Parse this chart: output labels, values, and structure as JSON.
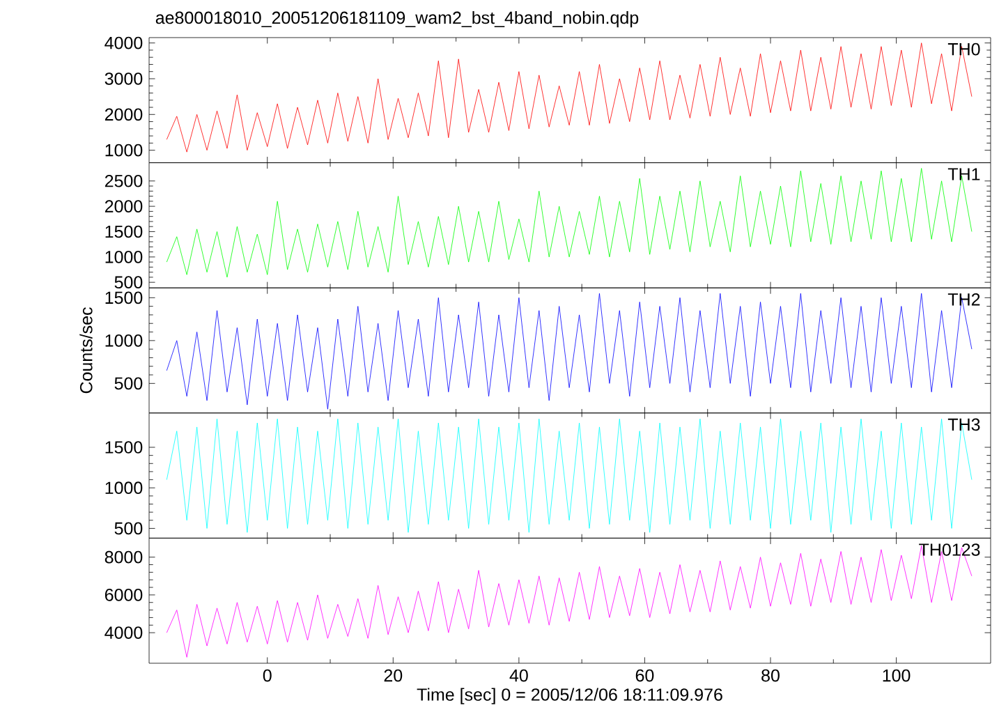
{
  "chart_data": [
    {
      "type": "line",
      "title": "ae800018010_20051206181109_wam2_bst_4band_nobin.qdp",
      "tick_labels": "y",
      "xlim": [
        -18.8,
        115
      ],
      "xticks": [
        0,
        20,
        40,
        60,
        80,
        100
      ],
      "ylim": [
        650,
        4150
      ],
      "yticks": [
        1000,
        2000,
        3000,
        4000
      ],
      "x": [
        -16,
        -14.4,
        -12.8,
        -11.2,
        -9.6,
        -8,
        -6.4,
        -4.8,
        -3.2,
        -1.6,
        0,
        1.6,
        3.2,
        4.8,
        6.4,
        8,
        9.6,
        11.2,
        12.8,
        14.4,
        16,
        17.6,
        19.2,
        20.8,
        22.4,
        24,
        25.6,
        27.2,
        28.8,
        30.4,
        32,
        33.6,
        35.2,
        36.8,
        38.4,
        40,
        41.6,
        43.2,
        44.8,
        46.4,
        48,
        49.6,
        51.2,
        52.8,
        54.4,
        56,
        57.6,
        59.2,
        60.8,
        62.4,
        64,
        65.6,
        67.2,
        68.8,
        70.4,
        72,
        73.6,
        75.2,
        76.8,
        78.4,
        80,
        81.6,
        83.2,
        84.8,
        86.4,
        88,
        89.6,
        91.2,
        92.8,
        94.4,
        96,
        97.6,
        99.2,
        100.8,
        102.4,
        104,
        105.6,
        107.2,
        108.8,
        110.4,
        112
      ],
      "series": [
        {
          "name": "TH0",
          "color": "#ff0000",
          "values": [
            1300,
            1950,
            950,
            2000,
            1000,
            2100,
            1050,
            2550,
            1000,
            2050,
            1100,
            2300,
            1050,
            2200,
            1150,
            2400,
            1200,
            2600,
            1250,
            2500,
            1200,
            3000,
            1300,
            2450,
            1350,
            2600,
            1400,
            3500,
            1350,
            3550,
            1500,
            2700,
            1500,
            2900,
            1550,
            3200,
            1600,
            3100,
            1650,
            2800,
            1700,
            3200,
            1700,
            3400,
            1750,
            3000,
            1800,
            3300,
            1850,
            3500,
            1850,
            3100,
            1900,
            3400,
            1950,
            3600,
            2000,
            3300,
            1950,
            3700,
            2050,
            3500,
            2100,
            3800,
            2100,
            3600,
            2150,
            3900,
            2200,
            3700,
            2150,
            3900,
            2250,
            3800,
            2200,
            4000,
            2300,
            3700,
            2100,
            3900,
            2500
          ]
        }
      ]
    },
    {
      "type": "line",
      "tick_labels": "y",
      "xlim": [
        -18.8,
        115
      ],
      "xticks": [
        0,
        20,
        40,
        60,
        80,
        100
      ],
      "ylim": [
        390,
        2860
      ],
      "yticks": [
        500,
        1000,
        1500,
        2000,
        2500
      ],
      "x": [
        -16,
        -14.4,
        -12.8,
        -11.2,
        -9.6,
        -8,
        -6.4,
        -4.8,
        -3.2,
        -1.6,
        0,
        1.6,
        3.2,
        4.8,
        6.4,
        8,
        9.6,
        11.2,
        12.8,
        14.4,
        16,
        17.6,
        19.2,
        20.8,
        22.4,
        24,
        25.6,
        27.2,
        28.8,
        30.4,
        32,
        33.6,
        35.2,
        36.8,
        38.4,
        40,
        41.6,
        43.2,
        44.8,
        46.4,
        48,
        49.6,
        51.2,
        52.8,
        54.4,
        56,
        57.6,
        59.2,
        60.8,
        62.4,
        64,
        65.6,
        67.2,
        68.8,
        70.4,
        72,
        73.6,
        75.2,
        76.8,
        78.4,
        80,
        81.6,
        83.2,
        84.8,
        86.4,
        88,
        89.6,
        91.2,
        92.8,
        94.4,
        96,
        97.6,
        99.2,
        100.8,
        102.4,
        104,
        105.6,
        107.2,
        108.8,
        110.4,
        112
      ],
      "series": [
        {
          "name": "TH1",
          "color": "#00ff00",
          "values": [
            900,
            1400,
            650,
            1550,
            700,
            1500,
            600,
            1600,
            700,
            1450,
            650,
            2100,
            750,
            1550,
            700,
            1650,
            800,
            1700,
            750,
            1900,
            800,
            1600,
            700,
            2200,
            850,
            1700,
            800,
            1800,
            850,
            2000,
            900,
            1900,
            900,
            2100,
            950,
            1750,
            900,
            2300,
            1000,
            2000,
            1000,
            1900,
            1050,
            2200,
            1000,
            2100,
            1100,
            2550,
            1050,
            2200,
            1150,
            2300,
            1100,
            2500,
            1200,
            2100,
            1100,
            2600,
            1200,
            2300,
            1250,
            2400,
            1200,
            2700,
            1300,
            2450,
            1250,
            2600,
            1300,
            2500,
            1350,
            2700,
            1300,
            2550,
            1300,
            2750,
            1350,
            2500,
            1300,
            2600,
            1500
          ]
        }
      ]
    },
    {
      "type": "line",
      "tick_labels": "y",
      "ylabel": "Counts/sec",
      "xlim": [
        -18.8,
        115
      ],
      "xticks": [
        0,
        20,
        40,
        60,
        80,
        100
      ],
      "ylim": [
        155,
        1615
      ],
      "yticks": [
        500,
        1000,
        1500
      ],
      "x": [
        -16,
        -14.4,
        -12.8,
        -11.2,
        -9.6,
        -8,
        -6.4,
        -4.8,
        -3.2,
        -1.6,
        0,
        1.6,
        3.2,
        4.8,
        6.4,
        8,
        9.6,
        11.2,
        12.8,
        14.4,
        16,
        17.6,
        19.2,
        20.8,
        22.4,
        24,
        25.6,
        27.2,
        28.8,
        30.4,
        32,
        33.6,
        35.2,
        36.8,
        38.4,
        40,
        41.6,
        43.2,
        44.8,
        46.4,
        48,
        49.6,
        51.2,
        52.8,
        54.4,
        56,
        57.6,
        59.2,
        60.8,
        62.4,
        64,
        65.6,
        67.2,
        68.8,
        70.4,
        72,
        73.6,
        75.2,
        76.8,
        78.4,
        80,
        81.6,
        83.2,
        84.8,
        86.4,
        88,
        89.6,
        91.2,
        92.8,
        94.4,
        96,
        97.6,
        99.2,
        100.8,
        102.4,
        104,
        105.6,
        107.2,
        108.8,
        110.4,
        112
      ],
      "series": [
        {
          "name": "TH2",
          "color": "#0000ff",
          "values": [
            650,
            1000,
            350,
            1100,
            300,
            1350,
            400,
            1150,
            250,
            1250,
            350,
            1200,
            300,
            1300,
            400,
            1150,
            200,
            1250,
            350,
            1400,
            400,
            1200,
            300,
            1350,
            450,
            1250,
            350,
            1500,
            400,
            1300,
            450,
            1450,
            350,
            1300,
            400,
            1500,
            450,
            1350,
            300,
            1400,
            450,
            1300,
            400,
            1550,
            500,
            1350,
            350,
            1450,
            450,
            1400,
            500,
            1500,
            400,
            1350,
            450,
            1550,
            500,
            1400,
            350,
            1450,
            500,
            1400,
            450,
            1550,
            400,
            1350,
            500,
            1500,
            450,
            1400,
            400,
            1500,
            500,
            1400,
            450,
            1550,
            400,
            1350,
            450,
            1500,
            900
          ]
        }
      ]
    },
    {
      "type": "line",
      "tick_labels": "y",
      "xlim": [
        -18.8,
        115
      ],
      "xticks": [
        0,
        20,
        40,
        60,
        80,
        100
      ],
      "ylim": [
        380,
        1923
      ],
      "yticks": [
        500,
        1000,
        1500
      ],
      "x": [
        -16,
        -14.4,
        -12.8,
        -11.2,
        -9.6,
        -8,
        -6.4,
        -4.8,
        -3.2,
        -1.6,
        0,
        1.6,
        3.2,
        4.8,
        6.4,
        8,
        9.6,
        11.2,
        12.8,
        14.4,
        16,
        17.6,
        19.2,
        20.8,
        22.4,
        24,
        25.6,
        27.2,
        28.8,
        30.4,
        32,
        33.6,
        35.2,
        36.8,
        38.4,
        40,
        41.6,
        43.2,
        44.8,
        46.4,
        48,
        49.6,
        51.2,
        52.8,
        54.4,
        56,
        57.6,
        59.2,
        60.8,
        62.4,
        64,
        65.6,
        67.2,
        68.8,
        70.4,
        72,
        73.6,
        75.2,
        76.8,
        78.4,
        80,
        81.6,
        83.2,
        84.8,
        86.4,
        88,
        89.6,
        91.2,
        92.8,
        94.4,
        96,
        97.6,
        99.2,
        100.8,
        102.4,
        104,
        105.6,
        107.2,
        108.8,
        110.4,
        112
      ],
      "series": [
        {
          "name": "TH3",
          "color": "#00ffff",
          "values": [
            1100,
            1700,
            600,
            1750,
            500,
            1850,
            550,
            1700,
            450,
            1800,
            600,
            1850,
            500,
            1750,
            550,
            1700,
            600,
            1850,
            500,
            1800,
            550,
            1750,
            600,
            1850,
            450,
            1700,
            550,
            1800,
            600,
            1750,
            500,
            1850,
            550,
            1750,
            600,
            1800,
            450,
            1850,
            550,
            1700,
            600,
            1800,
            500,
            1750,
            550,
            1850,
            600,
            1700,
            450,
            1800,
            550,
            1750,
            600,
            1850,
            500,
            1700,
            550,
            1800,
            600,
            1750,
            500,
            1850,
            550,
            1700,
            600,
            1800,
            450,
            1750,
            550,
            1850,
            600,
            1700,
            500,
            1800,
            550,
            1750,
            600,
            1850,
            500,
            1800,
            1100
          ]
        }
      ]
    },
    {
      "type": "line",
      "xlabel": "Time [sec] 0 = 2005/12/06 18:11:09.976",
      "xlim": [
        -18.8,
        115
      ],
      "xticks": [
        0,
        20,
        40,
        60,
        80,
        100
      ],
      "ylim": [
        2382,
        9007
      ],
      "yticks": [
        4000,
        6000,
        8000
      ],
      "x": [
        -16,
        -14.4,
        -12.8,
        -11.2,
        -9.6,
        -8,
        -6.4,
        -4.8,
        -3.2,
        -1.6,
        0,
        1.6,
        3.2,
        4.8,
        6.4,
        8,
        9.6,
        11.2,
        12.8,
        14.4,
        16,
        17.6,
        19.2,
        20.8,
        22.4,
        24,
        25.6,
        27.2,
        28.8,
        30.4,
        32,
        33.6,
        35.2,
        36.8,
        38.4,
        40,
        41.6,
        43.2,
        44.8,
        46.4,
        48,
        49.6,
        51.2,
        52.8,
        54.4,
        56,
        57.6,
        59.2,
        60.8,
        62.4,
        64,
        65.6,
        67.2,
        68.8,
        70.4,
        72,
        73.6,
        75.2,
        76.8,
        78.4,
        80,
        81.6,
        83.2,
        84.8,
        86.4,
        88,
        89.6,
        91.2,
        92.8,
        94.4,
        96,
        97.6,
        99.2,
        100.8,
        102.4,
        104,
        105.6,
        107.2,
        108.8,
        110.4,
        112
      ],
      "series": [
        {
          "name": "TH0123",
          "color": "#ff00ff",
          "values": [
            4000,
            5200,
            2700,
            5500,
            3300,
            5300,
            3400,
            5600,
            3500,
            5400,
            3400,
            5700,
            3500,
            5600,
            3600,
            6000,
            3700,
            5500,
            3800,
            5800,
            3700,
            6500,
            3900,
            5900,
            4000,
            6200,
            4100,
            6700,
            4000,
            6300,
            4200,
            7300,
            4300,
            6600,
            4400,
            6800,
            4500,
            7000,
            4400,
            6900,
            4600,
            7200,
            4700,
            7500,
            4800,
            7000,
            4900,
            7400,
            4800,
            7200,
            5000,
            7600,
            5100,
            7300,
            5100,
            7800,
            5200,
            7500,
            5300,
            8000,
            5400,
            7700,
            5500,
            8200,
            5400,
            7900,
            5600,
            8300,
            5500,
            8000,
            5600,
            8400,
            5700,
            8100,
            5800,
            8600,
            5600,
            8300,
            5700,
            8500,
            7000
          ]
        }
      ]
    }
  ]
}
